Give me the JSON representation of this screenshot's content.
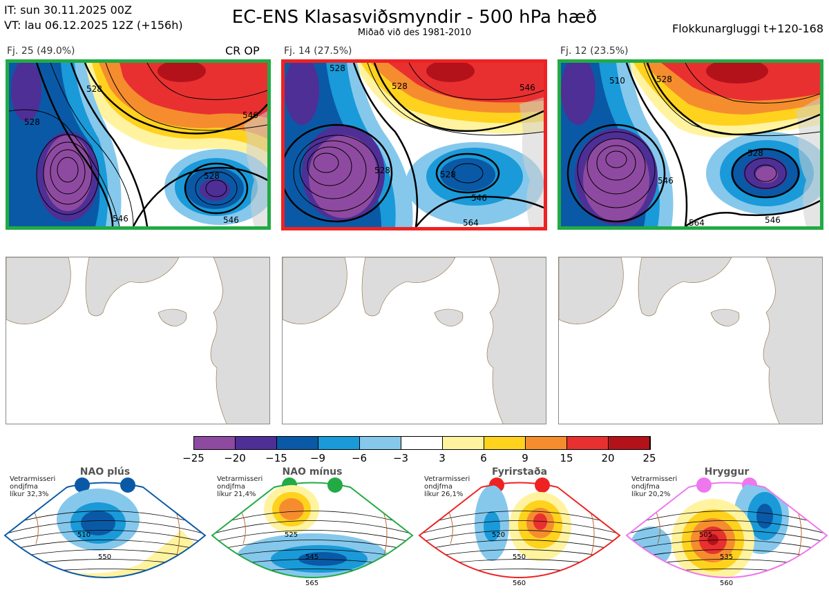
{
  "header": {
    "init_time": "IT: sun 30.11.2025 00Z",
    "valid_time": "VT: lau 06.12.2025 12Z  (+156h)",
    "title": "EC-ENS Klasasviðsmyndir - 500 hPa hæð",
    "subtitle": "Miðað við des 1981-2010",
    "window": "Flokkunargluggi t+120-168"
  },
  "clusters": [
    {
      "label": "Fj. 25 (49.0%)",
      "border_color": "#22aa44",
      "tag": "CR OP",
      "contours": [
        "528",
        "528",
        "546",
        "528",
        "546",
        "546"
      ]
    },
    {
      "label": "Fj. 14 (27.5%)",
      "border_color": "#ee2222",
      "tag": "",
      "contours": [
        "528",
        "528",
        "546",
        "528",
        "546",
        "528",
        "564"
      ]
    },
    {
      "label": "Fj. 12 (23.5%)",
      "border_color": "#22aa44",
      "tag": "",
      "contours": [
        "510",
        "528",
        "546",
        "528",
        "546",
        "564"
      ]
    }
  ],
  "colorbar": {
    "colors": [
      "#8e4aa0",
      "#4e2f96",
      "#0a59a6",
      "#1a9ad8",
      "#85c8ec",
      "#ffffff",
      "#fff3a0",
      "#ffd21e",
      "#f58d2e",
      "#e93030",
      "#b3121a"
    ],
    "ticks": [
      "−25",
      "−20",
      "−15",
      "−9",
      "−6",
      "−3",
      "3",
      "6",
      "9",
      "15",
      "20",
      "25"
    ]
  },
  "regimes": [
    {
      "name": "NAO plús",
      "info": [
        "Vetrarmisseri",
        "ondjfma",
        "líkur 32,3%"
      ],
      "color": "#0a59a6",
      "labels": [
        "510",
        "550"
      ]
    },
    {
      "name": "NAO mínus",
      "info": [
        "Vetrarmisseri",
        "ondjfma",
        "líkur 21,4%"
      ],
      "color": "#22aa44",
      "labels": [
        "525",
        "545",
        "565"
      ]
    },
    {
      "name": "Fyrirstaða",
      "info": [
        "Vetrarmisseri",
        "ondjfma",
        "líkur 26,1%"
      ],
      "color": "#ee2222",
      "labels": [
        "520",
        "550",
        "560"
      ]
    },
    {
      "name": "Hryggur",
      "info": [
        "Vetrarmisseri",
        "ondjfma",
        "líkur 20,2%"
      ],
      "color": "#ee77ee",
      "labels": [
        "505",
        "535",
        "560"
      ]
    }
  ]
}
